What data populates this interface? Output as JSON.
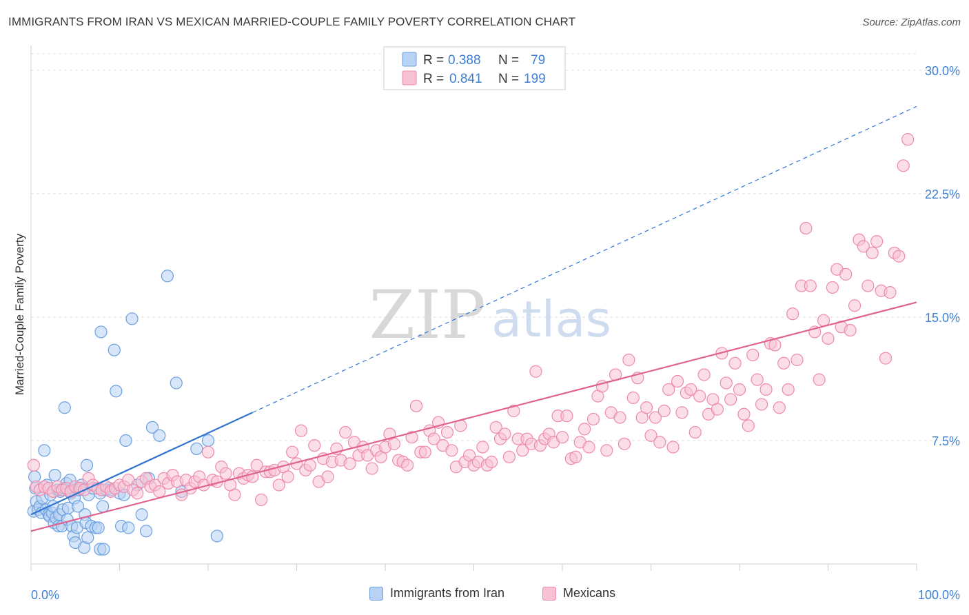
{
  "title": "IMMIGRANTS FROM IRAN VS MEXICAN MARRIED-COUPLE FAMILY POVERTY CORRELATION CHART",
  "source": "Source: ZipAtlas.com",
  "watermark": {
    "part1": "ZIP",
    "part2": "atlas"
  },
  "colors": {
    "iran_fill": "#b7d2f2",
    "iran_stroke": "#6a9fe0",
    "iran_line": "#2f73cf",
    "mex_fill": "#f8c2d4",
    "mex_stroke": "#ee8aab",
    "mex_line": "#e0628f",
    "axis_label": "#3f7fd0",
    "grid": "#dddddd"
  },
  "legend": {
    "rows": [
      {
        "r_label": "R =",
        "r_value": "0.388",
        "n_label": "N =",
        "n_value": "79"
      },
      {
        "r_label": "R =",
        "r_value": "0.841",
        "n_label": "N =",
        "n_value": "199"
      }
    ]
  },
  "chart_data": {
    "type": "scatter",
    "title": "IMMIGRANTS FROM IRAN VS MEXICAN MARRIED-COUPLE FAMILY POVERTY CORRELATION CHART",
    "ylabel": "Married-Couple Family Poverty",
    "xlabel": "",
    "xlim": [
      0,
      100
    ],
    "ylim": [
      0,
      31
    ],
    "x_tick_labels": [
      "0.0%",
      "100.0%"
    ],
    "y_ticks": [
      7.5,
      15.0,
      22.5,
      30.0
    ],
    "y_tick_labels": [
      "7.5%",
      "15.0%",
      "22.5%",
      "30.0%"
    ],
    "series": [
      {
        "name": "Immigrants from Iran",
        "R": 0.388,
        "N": 79,
        "trend": {
          "x0": 0,
          "y0": 3.0,
          "x1": 25,
          "y1": 9.2,
          "dash_to_x": 100,
          "dash_to_y": 27.8
        },
        "points": [
          [
            0.3,
            3.2
          ],
          [
            0.5,
            4.6
          ],
          [
            0.6,
            3.8
          ],
          [
            0.8,
            3.3
          ],
          [
            1.0,
            3.5
          ],
          [
            1.2,
            3.1
          ],
          [
            1.3,
            4.0
          ],
          [
            1.5,
            6.9
          ],
          [
            1.7,
            3.3
          ],
          [
            1.8,
            4.8
          ],
          [
            2.0,
            3.0
          ],
          [
            2.1,
            2.9
          ],
          [
            2.2,
            4.2
          ],
          [
            2.4,
            3.1
          ],
          [
            2.5,
            3.5
          ],
          [
            2.6,
            2.5
          ],
          [
            2.7,
            5.4
          ],
          [
            2.8,
            2.8
          ],
          [
            3.0,
            4.5
          ],
          [
            3.1,
            2.3
          ],
          [
            3.2,
            3.0
          ],
          [
            3.3,
            4.4
          ],
          [
            3.5,
            2.3
          ],
          [
            3.6,
            3.3
          ],
          [
            3.7,
            4.6
          ],
          [
            3.8,
            9.5
          ],
          [
            4.0,
            4.9
          ],
          [
            4.1,
            2.7
          ],
          [
            4.2,
            3.4
          ],
          [
            4.4,
            5.1
          ],
          [
            4.5,
            4.3
          ],
          [
            4.6,
            2.3
          ],
          [
            4.8,
            1.7
          ],
          [
            4.9,
            4.0
          ],
          [
            5.0,
            1.3
          ],
          [
            5.2,
            2.2
          ],
          [
            5.3,
            3.5
          ],
          [
            5.4,
            4.5
          ],
          [
            5.6,
            4.6
          ],
          [
            5.7,
            4.8
          ],
          [
            6.0,
            1.0
          ],
          [
            6.1,
            3.0
          ],
          [
            6.2,
            2.5
          ],
          [
            6.3,
            6.0
          ],
          [
            6.4,
            1.6
          ],
          [
            6.5,
            4.2
          ],
          [
            6.8,
            2.3
          ],
          [
            7.0,
            4.6
          ],
          [
            7.3,
            2.2
          ],
          [
            7.6,
            2.2
          ],
          [
            7.8,
            4.3
          ],
          [
            7.8,
            0.9
          ],
          [
            7.9,
            14.1
          ],
          [
            8.1,
            3.5
          ],
          [
            8.2,
            0.9
          ],
          [
            8.5,
            4.5
          ],
          [
            8.8,
            4.6
          ],
          [
            9.0,
            4.5
          ],
          [
            9.4,
            13.0
          ],
          [
            9.6,
            10.5
          ],
          [
            10.0,
            4.3
          ],
          [
            10.2,
            2.3
          ],
          [
            10.5,
            4.2
          ],
          [
            10.7,
            7.5
          ],
          [
            11.0,
            2.2
          ],
          [
            11.4,
            14.9
          ],
          [
            12.0,
            4.8
          ],
          [
            12.5,
            3.0
          ],
          [
            13.0,
            2.0
          ],
          [
            13.3,
            5.2
          ],
          [
            13.7,
            8.3
          ],
          [
            14.5,
            7.8
          ],
          [
            15.4,
            17.5
          ],
          [
            16.4,
            11.0
          ],
          [
            17.0,
            4.4
          ],
          [
            18.7,
            7.0
          ],
          [
            20.0,
            7.5
          ],
          [
            21.0,
            1.7
          ],
          [
            0.4,
            5.3
          ]
        ]
      },
      {
        "name": "Mexicans",
        "R": 0.841,
        "N": 199,
        "trend": {
          "x0": 0,
          "y0": 2.0,
          "x1": 100,
          "y1": 15.9
        },
        "points": [
          [
            0.3,
            6.0
          ],
          [
            0.6,
            4.7
          ],
          [
            1.0,
            4.5
          ],
          [
            1.5,
            4.7
          ],
          [
            2.0,
            4.6
          ],
          [
            2.5,
            4.4
          ],
          [
            3.0,
            4.7
          ],
          [
            3.5,
            4.5
          ],
          [
            4.0,
            4.6
          ],
          [
            4.5,
            4.4
          ],
          [
            5.0,
            4.7
          ],
          [
            5.5,
            4.6
          ],
          [
            6.0,
            4.5
          ],
          [
            6.5,
            5.2
          ],
          [
            7.0,
            4.8
          ],
          [
            7.5,
            4.6
          ],
          [
            8.0,
            4.5
          ],
          [
            8.5,
            4.7
          ],
          [
            9.0,
            4.4
          ],
          [
            9.5,
            4.6
          ],
          [
            10.0,
            4.8
          ],
          [
            10.5,
            4.7
          ],
          [
            11.0,
            5.1
          ],
          [
            11.5,
            4.5
          ],
          [
            12.0,
            4.3
          ],
          [
            12.5,
            5.0
          ],
          [
            13.0,
            5.2
          ],
          [
            13.5,
            4.7
          ],
          [
            14.0,
            4.8
          ],
          [
            14.5,
            4.4
          ],
          [
            15.0,
            5.2
          ],
          [
            15.5,
            4.9
          ],
          [
            16.0,
            5.4
          ],
          [
            16.5,
            5.0
          ],
          [
            17.0,
            4.2
          ],
          [
            17.5,
            5.1
          ],
          [
            18.0,
            4.6
          ],
          [
            18.5,
            5.0
          ],
          [
            19.0,
            5.3
          ],
          [
            19.5,
            4.8
          ],
          [
            20.0,
            6.8
          ],
          [
            20.5,
            5.1
          ],
          [
            21.0,
            5.0
          ],
          [
            21.5,
            5.9
          ],
          [
            22.0,
            5.5
          ],
          [
            22.5,
            4.8
          ],
          [
            23.0,
            4.2
          ],
          [
            23.5,
            5.5
          ],
          [
            24.0,
            5.2
          ],
          [
            24.5,
            5.4
          ],
          [
            25.0,
            5.3
          ],
          [
            25.5,
            6.0
          ],
          [
            26.0,
            3.9
          ],
          [
            26.5,
            5.6
          ],
          [
            27.0,
            5.6
          ],
          [
            27.5,
            5.7
          ],
          [
            28.0,
            4.8
          ],
          [
            28.5,
            5.9
          ],
          [
            29.0,
            5.3
          ],
          [
            29.5,
            6.8
          ],
          [
            30.0,
            6.1
          ],
          [
            30.5,
            8.1
          ],
          [
            31.0,
            5.7
          ],
          [
            31.5,
            6.0
          ],
          [
            32.0,
            7.2
          ],
          [
            32.5,
            5.0
          ],
          [
            33.0,
            6.4
          ],
          [
            33.5,
            5.3
          ],
          [
            34.0,
            6.2
          ],
          [
            34.5,
            7.0
          ],
          [
            35.0,
            6.3
          ],
          [
            35.5,
            8.0
          ],
          [
            36.0,
            6.1
          ],
          [
            36.5,
            7.4
          ],
          [
            37.0,
            6.6
          ],
          [
            37.5,
            7.1
          ],
          [
            38.0,
            6.6
          ],
          [
            38.5,
            5.8
          ],
          [
            39.0,
            6.9
          ],
          [
            39.5,
            6.5
          ],
          [
            40.0,
            7.1
          ],
          [
            40.5,
            7.9
          ],
          [
            41.0,
            7.3
          ],
          [
            41.5,
            6.3
          ],
          [
            42.0,
            6.2
          ],
          [
            42.5,
            6.0
          ],
          [
            43.0,
            7.7
          ],
          [
            43.5,
            9.6
          ],
          [
            44.0,
            6.8
          ],
          [
            44.5,
            6.8
          ],
          [
            45.0,
            8.1
          ],
          [
            45.5,
            7.6
          ],
          [
            46.0,
            8.6
          ],
          [
            46.5,
            7.2
          ],
          [
            47.0,
            8.0
          ],
          [
            47.5,
            6.9
          ],
          [
            48.0,
            5.9
          ],
          [
            48.5,
            8.4
          ],
          [
            49.0,
            6.2
          ],
          [
            49.5,
            6.6
          ],
          [
            50.0,
            6.0
          ],
          [
            50.5,
            6.2
          ],
          [
            51.0,
            7.1
          ],
          [
            51.5,
            6.0
          ],
          [
            52.0,
            6.2
          ],
          [
            52.5,
            8.3
          ],
          [
            53.0,
            7.6
          ],
          [
            53.5,
            7.9
          ],
          [
            54.0,
            6.5
          ],
          [
            54.5,
            9.3
          ],
          [
            55.0,
            7.6
          ],
          [
            55.5,
            6.9
          ],
          [
            56.0,
            7.6
          ],
          [
            56.5,
            7.3
          ],
          [
            57.0,
            11.7
          ],
          [
            57.5,
            7.2
          ],
          [
            58.0,
            7.6
          ],
          [
            58.5,
            7.9
          ],
          [
            59.0,
            7.4
          ],
          [
            59.5,
            9.0
          ],
          [
            60.0,
            7.7
          ],
          [
            60.5,
            9.0
          ],
          [
            61.0,
            6.4
          ],
          [
            61.5,
            6.5
          ],
          [
            62.0,
            7.4
          ],
          [
            62.5,
            8.2
          ],
          [
            63.0,
            7.1
          ],
          [
            63.5,
            8.8
          ],
          [
            64.0,
            10.2
          ],
          [
            64.5,
            10.8
          ],
          [
            65.0,
            6.9
          ],
          [
            65.5,
            9.2
          ],
          [
            66.0,
            11.5
          ],
          [
            66.5,
            8.9
          ],
          [
            67.0,
            7.3
          ],
          [
            67.5,
            12.4
          ],
          [
            68.0,
            10.1
          ],
          [
            68.5,
            11.3
          ],
          [
            69.0,
            8.9
          ],
          [
            69.5,
            9.5
          ],
          [
            70.0,
            7.8
          ],
          [
            70.5,
            8.9
          ],
          [
            71.0,
            7.4
          ],
          [
            71.5,
            9.3
          ],
          [
            72.0,
            10.6
          ],
          [
            72.5,
            7.1
          ],
          [
            73.0,
            11.1
          ],
          [
            73.5,
            9.2
          ],
          [
            74.0,
            10.4
          ],
          [
            74.5,
            10.6
          ],
          [
            75.0,
            8.0
          ],
          [
            75.5,
            10.2
          ],
          [
            76.0,
            11.5
          ],
          [
            76.5,
            9.1
          ],
          [
            77.0,
            10.0
          ],
          [
            77.5,
            9.4
          ],
          [
            78.0,
            12.8
          ],
          [
            78.5,
            11.0
          ],
          [
            79.0,
            10.0
          ],
          [
            79.5,
            12.2
          ],
          [
            80.0,
            10.6
          ],
          [
            80.5,
            9.1
          ],
          [
            81.0,
            8.4
          ],
          [
            81.5,
            12.7
          ],
          [
            82.0,
            11.2
          ],
          [
            82.5,
            9.7
          ],
          [
            83.0,
            10.6
          ],
          [
            83.5,
            13.4
          ],
          [
            84.0,
            13.3
          ],
          [
            84.5,
            9.5
          ],
          [
            85.0,
            12.2
          ],
          [
            85.5,
            10.6
          ],
          [
            86.0,
            15.2
          ],
          [
            86.5,
            12.4
          ],
          [
            87.0,
            16.9
          ],
          [
            87.5,
            20.4
          ],
          [
            88.0,
            16.9
          ],
          [
            88.5,
            14.1
          ],
          [
            89.0,
            11.2
          ],
          [
            89.5,
            14.8
          ],
          [
            90.0,
            13.7
          ],
          [
            90.5,
            16.8
          ],
          [
            91.0,
            17.9
          ],
          [
            91.5,
            14.4
          ],
          [
            92.0,
            17.6
          ],
          [
            92.5,
            14.2
          ],
          [
            93.0,
            15.7
          ],
          [
            93.5,
            19.7
          ],
          [
            94.0,
            19.3
          ],
          [
            94.5,
            16.9
          ],
          [
            95.0,
            18.9
          ],
          [
            95.5,
            19.6
          ],
          [
            96.0,
            16.6
          ],
          [
            96.5,
            12.5
          ],
          [
            97.0,
            16.5
          ],
          [
            97.5,
            18.9
          ],
          [
            98.0,
            18.7
          ],
          [
            98.5,
            24.2
          ],
          [
            99.0,
            25.8
          ]
        ]
      }
    ]
  },
  "bottom_legend": {
    "iran_label": "Immigrants from Iran",
    "mex_label": "Mexicans"
  }
}
